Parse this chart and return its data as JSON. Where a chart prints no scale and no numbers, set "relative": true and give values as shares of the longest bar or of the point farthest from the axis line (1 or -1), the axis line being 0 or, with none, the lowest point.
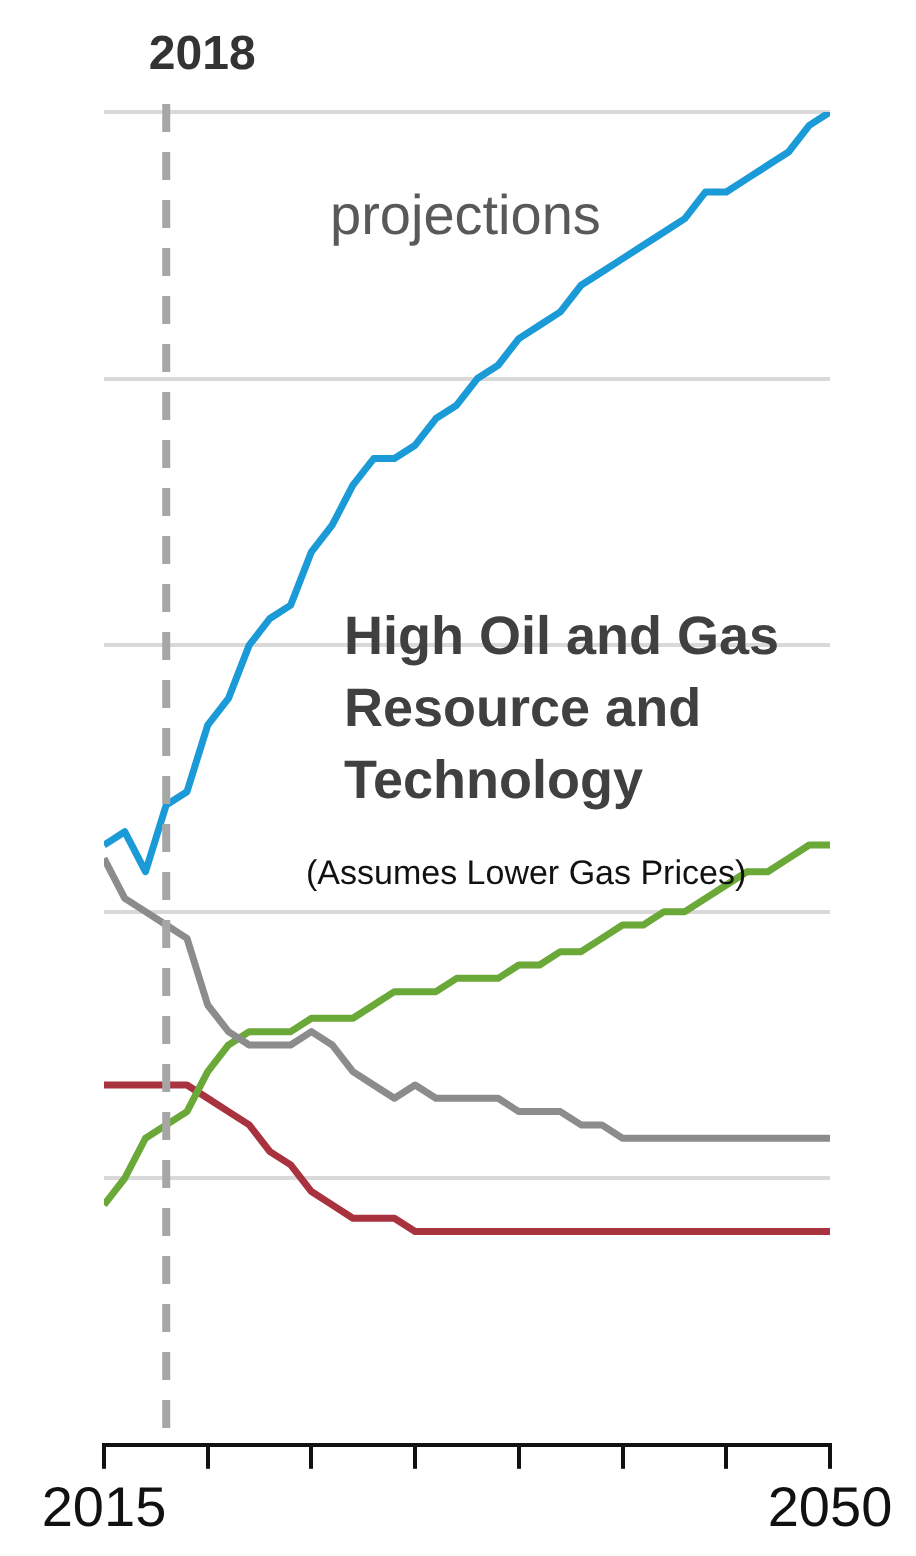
{
  "chart_data": {
    "type": "line",
    "title": "High Oil and Gas Resource and Technology",
    "subtitle": "(Assumes Lower Gas Prices)",
    "annotations": [
      "projections"
    ],
    "x": [
      2015,
      2016,
      2017,
      2018,
      2019,
      2020,
      2021,
      2022,
      2023,
      2024,
      2025,
      2026,
      2027,
      2028,
      2029,
      2030,
      2031,
      2032,
      2033,
      2034,
      2035,
      2036,
      2037,
      2038,
      2039,
      2040,
      2041,
      2042,
      2043,
      2044,
      2045,
      2046,
      2047,
      2048,
      2049,
      2050
    ],
    "xlim": [
      2015,
      2050
    ],
    "xticks": [
      2015,
      {
        "value": 2020,
        "label": null
      },
      {
        "value": 2025,
        "label": null
      },
      {
        "value": 2030,
        "label": null
      },
      {
        "value": 2035,
        "label": null
      },
      {
        "value": 2040,
        "label": null
      },
      {
        "value": 2045,
        "label": null
      },
      2050
    ],
    "relative": true,
    "grid": "y",
    "legend": false,
    "marker": "none",
    "line_style": "solid",
    "ref_lines": [
      {
        "axis": "x",
        "value": 2018,
        "label": "2018",
        "color": "#a6a6a6",
        "line_style": "dashed"
      }
    ],
    "series": [
      {
        "color": "#1a9ad6",
        "values": [
          0.45,
          0.46,
          0.43,
          0.48,
          0.49,
          0.54,
          0.56,
          0.6,
          0.62,
          0.63,
          0.67,
          0.69,
          0.72,
          0.74,
          0.74,
          0.75,
          0.77,
          0.78,
          0.8,
          0.81,
          0.83,
          0.84,
          0.85,
          0.87,
          0.88,
          0.89,
          0.9,
          0.91,
          0.92,
          0.94,
          0.94,
          0.95,
          0.96,
          0.97,
          0.99,
          1
        ]
      },
      {
        "color": "#8c8c8c",
        "values": [
          0.44,
          0.41,
          0.4,
          0.39,
          0.38,
          0.33,
          0.31,
          0.3,
          0.3,
          0.3,
          0.31,
          0.3,
          0.28,
          0.27,
          0.26,
          0.27,
          0.26,
          0.26,
          0.26,
          0.26,
          0.25,
          0.25,
          0.25,
          0.24,
          0.24,
          0.23,
          0.23,
          0.23,
          0.23,
          0.23,
          0.23,
          0.23,
          0.23,
          0.23,
          0.23,
          0.23
        ]
      },
      {
        "color": "#6aa838",
        "values": [
          0.18,
          0.2,
          0.23,
          0.24,
          0.25,
          0.28,
          0.3,
          0.31,
          0.31,
          0.31,
          0.32,
          0.32,
          0.32,
          0.33,
          0.34,
          0.34,
          0.34,
          0.35,
          0.35,
          0.35,
          0.36,
          0.36,
          0.37,
          0.37,
          0.38,
          0.39,
          0.39,
          0.4,
          0.4,
          0.41,
          0.42,
          0.43,
          0.43,
          0.44,
          0.45,
          0.45
        ]
      },
      {
        "color": "#a8323e",
        "values": [
          0.27,
          0.27,
          0.27,
          0.27,
          0.27,
          0.26,
          0.25,
          0.24,
          0.22,
          0.21,
          0.19,
          0.18,
          0.17,
          0.17,
          0.17,
          0.16,
          0.16,
          0.16,
          0.16,
          0.16,
          0.16,
          0.16,
          0.16,
          0.16,
          0.16,
          0.16,
          0.16,
          0.16,
          0.16,
          0.16,
          0.16,
          0.16,
          0.16,
          0.16,
          0.16,
          0.16
        ]
      }
    ]
  }
}
